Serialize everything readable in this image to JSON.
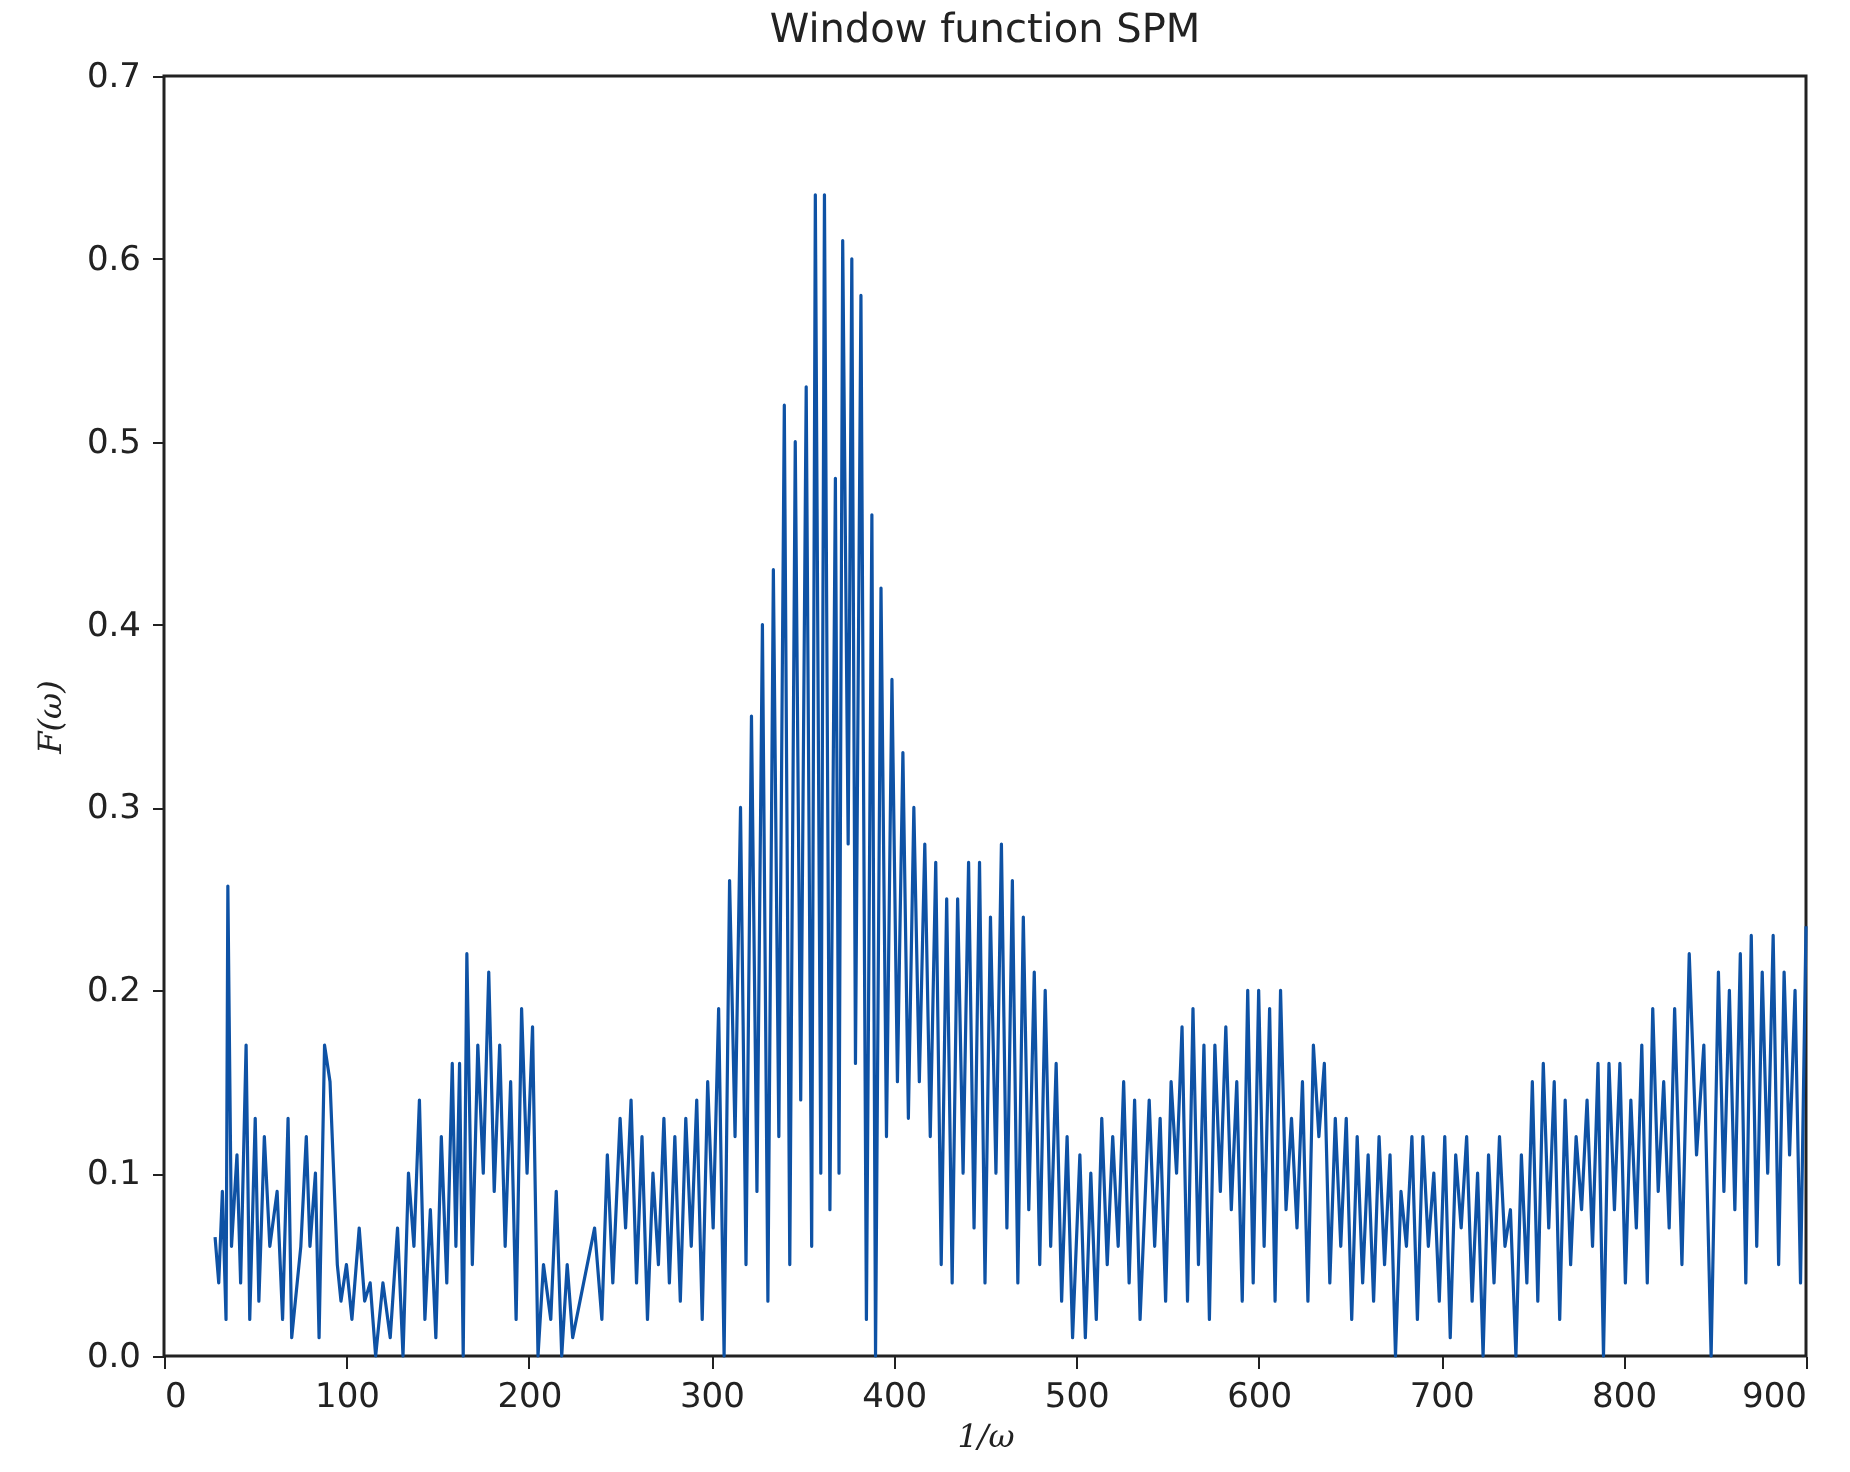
{
  "chart_data": {
    "type": "line",
    "title": "Window function SPM",
    "xlabel": "1/ω",
    "ylabel": "F(ω)",
    "x": [
      28,
      30,
      32,
      34,
      35,
      37,
      40,
      42,
      45,
      47,
      50,
      52,
      55,
      58,
      62,
      65,
      68,
      70,
      75,
      78,
      80,
      83,
      85,
      88,
      91,
      95,
      97,
      100,
      103,
      107,
      110,
      113,
      116,
      120,
      124,
      128,
      131,
      134,
      137,
      140,
      143,
      146,
      149,
      152,
      155,
      158,
      160,
      162,
      164,
      166,
      169,
      172,
      175,
      178,
      181,
      184,
      187,
      190,
      193,
      196,
      199,
      202,
      205,
      208,
      212,
      215,
      218,
      221,
      224,
      228,
      232,
      236,
      240,
      243,
      246,
      250,
      253,
      256,
      259,
      262,
      265,
      268,
      271,
      274,
      277,
      280,
      283,
      286,
      289,
      292,
      295,
      298,
      301,
      304,
      307,
      310,
      313,
      316,
      319,
      322,
      325,
      328,
      331,
      334,
      337,
      340,
      343,
      346,
      349,
      352,
      355,
      357,
      360,
      362,
      365,
      368,
      370,
      372,
      375,
      377,
      379,
      382,
      385,
      388,
      390,
      393,
      396,
      399,
      402,
      405,
      408,
      411,
      414,
      417,
      420,
      423,
      426,
      429,
      432,
      435,
      438,
      441,
      444,
      447,
      450,
      453,
      456,
      459,
      462,
      465,
      468,
      471,
      474,
      477,
      480,
      483,
      486,
      489,
      492,
      495,
      498,
      502,
      505,
      508,
      511,
      514,
      517,
      520,
      523,
      526,
      529,
      532,
      535,
      540,
      543,
      546,
      549,
      552,
      555,
      558,
      561,
      564,
      567,
      570,
      573,
      576,
      579,
      582,
      585,
      588,
      591,
      594,
      597,
      600,
      603,
      606,
      609,
      612,
      615,
      618,
      621,
      624,
      627,
      630,
      633,
      636,
      639,
      642,
      645,
      648,
      651,
      654,
      657,
      660,
      663,
      666,
      669,
      672,
      675,
      678,
      681,
      684,
      687,
      690,
      693,
      696,
      699,
      702,
      705,
      708,
      711,
      714,
      717,
      720,
      723,
      726,
      729,
      732,
      735,
      738,
      741,
      744,
      747,
      750,
      753,
      756,
      759,
      762,
      765,
      768,
      771,
      774,
      777,
      780,
      783,
      786,
      789,
      792,
      795,
      798,
      801,
      804,
      807,
      810,
      813,
      816,
      819,
      822,
      825,
      828,
      832,
      836,
      840,
      844,
      848,
      852,
      855,
      858,
      861,
      864,
      867,
      870,
      873,
      876,
      879,
      882,
      885,
      888,
      891,
      894,
      897,
      900
    ],
    "series": [
      {
        "color": "#0e52a5",
        "values": [
          0.065,
          0.04,
          0.09,
          0.02,
          0.257,
          0.06,
          0.11,
          0.04,
          0.17,
          0.02,
          0.13,
          0.03,
          0.12,
          0.06,
          0.09,
          0.02,
          0.13,
          0.01,
          0.06,
          0.12,
          0.06,
          0.1,
          0.01,
          0.17,
          0.15,
          0.05,
          0.03,
          0.05,
          0.02,
          0.07,
          0.03,
          0.04,
          0.0,
          0.04,
          0.01,
          0.07,
          0.0,
          0.1,
          0.06,
          0.14,
          0.02,
          0.08,
          0.01,
          0.12,
          0.04,
          0.16,
          0.06,
          0.16,
          0.0,
          0.22,
          0.05,
          0.17,
          0.1,
          0.21,
          0.09,
          0.17,
          0.06,
          0.15,
          0.02,
          0.19,
          0.1,
          0.18,
          0.0,
          0.05,
          0.02,
          0.09,
          0.0,
          0.05,
          0.01,
          0.03,
          0.05,
          0.07,
          0.02,
          0.11,
          0.04,
          0.13,
          0.07,
          0.14,
          0.04,
          0.12,
          0.02,
          0.1,
          0.05,
          0.13,
          0.04,
          0.12,
          0.03,
          0.13,
          0.06,
          0.14,
          0.02,
          0.15,
          0.07,
          0.19,
          0.0,
          0.26,
          0.12,
          0.3,
          0.05,
          0.35,
          0.09,
          0.4,
          0.03,
          0.43,
          0.12,
          0.52,
          0.05,
          0.5,
          0.14,
          0.53,
          0.06,
          0.635,
          0.1,
          0.635,
          0.08,
          0.48,
          0.1,
          0.61,
          0.28,
          0.6,
          0.16,
          0.58,
          0.02,
          0.46,
          0.0,
          0.42,
          0.12,
          0.37,
          0.15,
          0.33,
          0.13,
          0.3,
          0.15,
          0.28,
          0.12,
          0.27,
          0.05,
          0.25,
          0.04,
          0.25,
          0.1,
          0.27,
          0.07,
          0.27,
          0.04,
          0.24,
          0.1,
          0.28,
          0.07,
          0.26,
          0.04,
          0.24,
          0.08,
          0.21,
          0.05,
          0.2,
          0.06,
          0.16,
          0.03,
          0.12,
          0.01,
          0.11,
          0.01,
          0.1,
          0.02,
          0.13,
          0.05,
          0.12,
          0.06,
          0.15,
          0.04,
          0.14,
          0.02,
          0.14,
          0.06,
          0.13,
          0.03,
          0.15,
          0.1,
          0.18,
          0.03,
          0.19,
          0.05,
          0.17,
          0.02,
          0.17,
          0.09,
          0.18,
          0.08,
          0.15,
          0.03,
          0.2,
          0.04,
          0.2,
          0.06,
          0.19,
          0.03,
          0.2,
          0.08,
          0.13,
          0.07,
          0.15,
          0.03,
          0.17,
          0.12,
          0.16,
          0.04,
          0.13,
          0.06,
          0.13,
          0.02,
          0.12,
          0.04,
          0.11,
          0.03,
          0.12,
          0.05,
          0.11,
          0.0,
          0.09,
          0.06,
          0.12,
          0.02,
          0.12,
          0.06,
          0.1,
          0.03,
          0.12,
          0.01,
          0.11,
          0.07,
          0.12,
          0.03,
          0.1,
          0.0,
          0.11,
          0.04,
          0.12,
          0.06,
          0.08,
          0.0,
          0.11,
          0.04,
          0.15,
          0.03,
          0.16,
          0.07,
          0.15,
          0.02,
          0.14,
          0.05,
          0.12,
          0.08,
          0.14,
          0.06,
          0.16,
          0.0,
          0.16,
          0.08,
          0.16,
          0.04,
          0.14,
          0.07,
          0.17,
          0.04,
          0.19,
          0.09,
          0.15,
          0.07,
          0.19,
          0.05,
          0.22,
          0.11,
          0.17,
          0.0,
          0.21,
          0.09,
          0.2,
          0.08,
          0.22,
          0.04,
          0.23,
          0.06,
          0.21,
          0.1,
          0.23,
          0.05,
          0.21,
          0.11,
          0.2,
          0.04,
          0.235
        ]
      }
    ],
    "xlim": [
      0,
      900
    ],
    "xticks": [
      0,
      100,
      200,
      300,
      400,
      500,
      600,
      700,
      800,
      900
    ],
    "ylim": [
      0,
      0.7
    ],
    "yticks": [
      {
        "value": 0,
        "label": "0.0"
      },
      0.1,
      0.2,
      0.3,
      0.4,
      0.5,
      0.6,
      0.7
    ],
    "grid": false,
    "legend": false,
    "marker": "none",
    "line_style": "solid"
  }
}
